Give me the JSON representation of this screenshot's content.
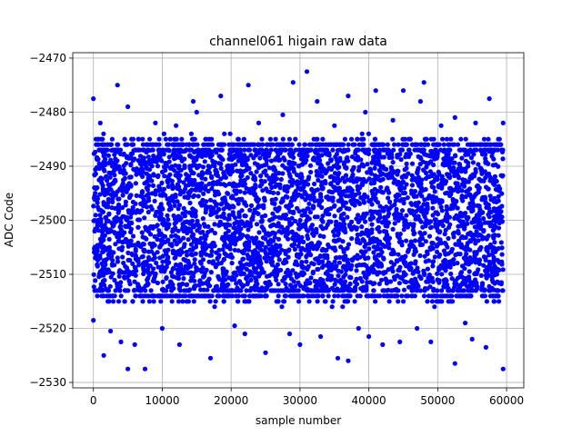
{
  "chart_data": {
    "type": "scatter",
    "title": "channel061 higain raw data",
    "xlabel": "sample number",
    "ylabel": "ADC Code",
    "xlim": [
      -3000,
      62500
    ],
    "ylim": [
      -2531,
      -2469
    ],
    "xticks": [
      0,
      10000,
      20000,
      30000,
      40000,
      50000,
      60000
    ],
    "yticks": [
      -2530,
      -2520,
      -2510,
      -2500,
      -2490,
      -2480,
      -2470
    ],
    "xtick_labels": [
      "0",
      "10000",
      "20000",
      "30000",
      "40000",
      "50000",
      "60000"
    ],
    "ytick_labels": [
      "−2530",
      "−2520",
      "−2510",
      "−2500",
      "−2490",
      "−2480",
      "−2470"
    ],
    "grid": true,
    "marker_color": "#0000ff",
    "series": [
      {
        "x_range": [
          0,
          59500
        ],
        "y_center": -2500,
        "core_range": [
          -2513,
          -2487
        ],
        "points": [
          [
            0,
            -2477.5
          ],
          [
            3500,
            -2475
          ],
          [
            31000,
            -2472.5
          ],
          [
            29000,
            -2474.5
          ],
          [
            48000,
            -2474.5
          ],
          [
            22500,
            -2475
          ],
          [
            41000,
            -2476
          ],
          [
            45000,
            -2476
          ],
          [
            37000,
            -2477
          ],
          [
            18500,
            -2477
          ],
          [
            14500,
            -2478
          ],
          [
            57500,
            -2477.5
          ],
          [
            32500,
            -2478
          ],
          [
            47500,
            -2478
          ],
          [
            5000,
            -2479
          ],
          [
            15000,
            -2480
          ],
          [
            39500,
            -2480
          ],
          [
            27500,
            -2480.5
          ],
          [
            52500,
            -2481
          ],
          [
            43500,
            -2481.5
          ],
          [
            1000,
            -2482
          ],
          [
            9000,
            -2482
          ],
          [
            12000,
            -2482.5
          ],
          [
            24000,
            -2482
          ],
          [
            35000,
            -2482.5
          ],
          [
            50500,
            -2482.5
          ],
          [
            55500,
            -2482
          ],
          [
            59500,
            -2482
          ],
          [
            0,
            -2518.5
          ],
          [
            1500,
            -2525
          ],
          [
            5000,
            -2527.5
          ],
          [
            7500,
            -2527.5
          ],
          [
            4000,
            -2522.5
          ],
          [
            6000,
            -2523
          ],
          [
            12500,
            -2523
          ],
          [
            17000,
            -2525.5
          ],
          [
            22000,
            -2521
          ],
          [
            25000,
            -2524.5
          ],
          [
            30000,
            -2523
          ],
          [
            33000,
            -2521.5
          ],
          [
            35500,
            -2525.5
          ],
          [
            37000,
            -2526
          ],
          [
            40000,
            -2521.5
          ],
          [
            42000,
            -2523
          ],
          [
            44500,
            -2522.5
          ],
          [
            49000,
            -2522.5
          ],
          [
            52500,
            -2526.5
          ],
          [
            55000,
            -2522
          ],
          [
            57000,
            -2523.5
          ],
          [
            59500,
            -2527.5
          ],
          [
            28500,
            -2521
          ],
          [
            47000,
            -2520
          ],
          [
            20500,
            -2519.5
          ],
          [
            10000,
            -2520
          ],
          [
            2500,
            -2520.5
          ],
          [
            38500,
            -2520
          ],
          [
            54000,
            -2519
          ]
        ]
      }
    ]
  }
}
